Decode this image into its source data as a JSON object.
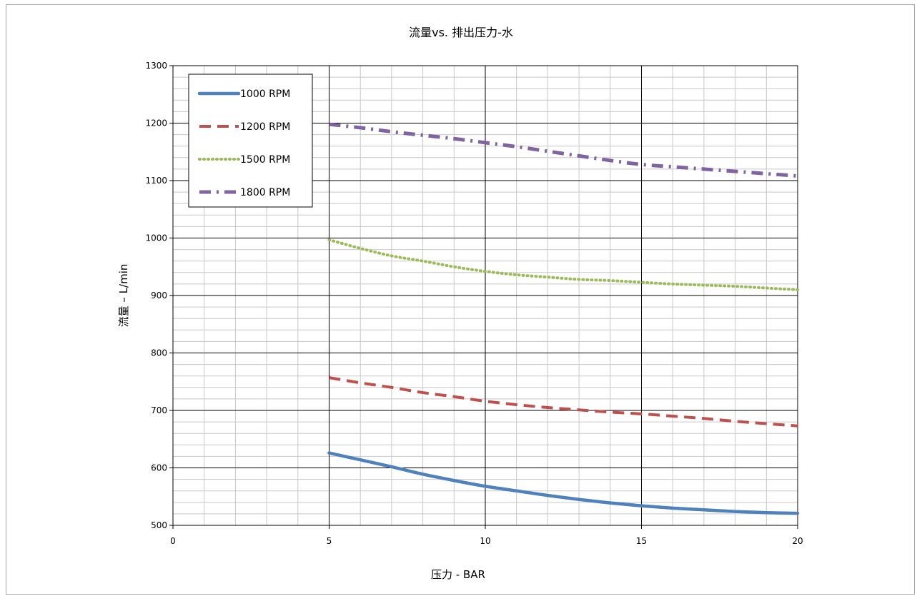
{
  "chart_data": {
    "type": "line",
    "title": "流量vs. 排出压力-水",
    "xlabel": "压力 - BAR",
    "ylabel": "流量 – L/min",
    "xlim": [
      0,
      20
    ],
    "ylim": [
      500,
      1300
    ],
    "x_ticks": [
      0,
      5,
      10,
      15,
      20
    ],
    "y_ticks": [
      500,
      600,
      700,
      800,
      900,
      1000,
      1100,
      1200,
      1300
    ],
    "x_minor_step": 1,
    "y_minor_step": 20,
    "grid": true,
    "legend_position": "top-left",
    "series": [
      {
        "name": "1000 RPM",
        "color": "#4f81bd",
        "style": "solid",
        "x": [
          5,
          6,
          7,
          8,
          9,
          10,
          11,
          12,
          13,
          14,
          15,
          16,
          17,
          18,
          19,
          20
        ],
        "y": [
          626,
          614,
          602,
          589,
          578,
          568,
          560,
          552,
          545,
          539,
          534,
          530,
          527,
          524,
          522,
          521
        ]
      },
      {
        "name": "1200 RPM",
        "color": "#c0504d",
        "style": "dash",
        "x": [
          5,
          6,
          7,
          8,
          9,
          10,
          11,
          12,
          13,
          14,
          15,
          16,
          17,
          18,
          19,
          20
        ],
        "y": [
          757,
          748,
          740,
          731,
          724,
          716,
          710,
          705,
          701,
          697,
          694,
          690,
          686,
          681,
          677,
          673
        ]
      },
      {
        "name": "1500 RPM",
        "color": "#9bbb59",
        "style": "dot",
        "x": [
          5,
          6,
          7,
          8,
          9,
          10,
          11,
          12,
          13,
          14,
          15,
          16,
          17,
          18,
          19,
          20
        ],
        "y": [
          997,
          982,
          969,
          960,
          950,
          942,
          936,
          932,
          928,
          926,
          923,
          920,
          918,
          916,
          913,
          910
        ]
      },
      {
        "name": "1800 RPM",
        "color": "#8064a2",
        "style": "dashdot",
        "x": [
          5,
          6,
          7,
          8,
          9,
          10,
          11,
          12,
          13,
          14,
          15,
          16,
          17,
          18,
          19,
          20
        ],
        "y": [
          1198,
          1192,
          1185,
          1179,
          1173,
          1166,
          1159,
          1151,
          1143,
          1135,
          1128,
          1124,
          1120,
          1116,
          1112,
          1108
        ]
      }
    ]
  }
}
